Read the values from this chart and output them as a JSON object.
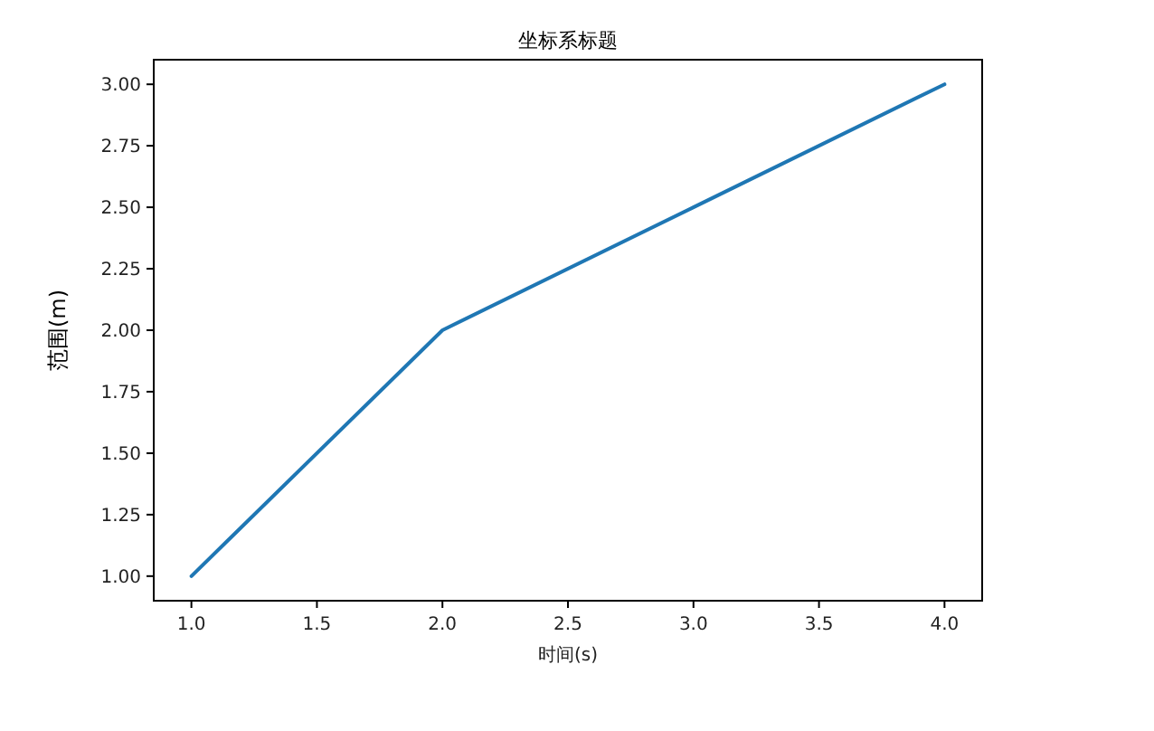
{
  "chart_data": {
    "type": "line",
    "title": "坐标系标题",
    "xlabel": "时间(s)",
    "ylabel": "范围(m)",
    "x": [
      1,
      2,
      3,
      4
    ],
    "series": [
      {
        "color": "#1f77b4",
        "values": [
          1,
          2,
          2.5,
          3
        ]
      }
    ],
    "xlim": [
      0.85,
      4.15
    ],
    "ylim": [
      0.9,
      3.1
    ],
    "xticks": [
      {
        "value": 1,
        "label": "1.0"
      },
      {
        "value": 1.5,
        "label": "1.5"
      },
      {
        "value": 2,
        "label": "2.0"
      },
      {
        "value": 2.5,
        "label": "2.5"
      },
      {
        "value": 3,
        "label": "3.0"
      },
      {
        "value": 3.5,
        "label": "3.5"
      },
      {
        "value": 4,
        "label": "4.0"
      }
    ],
    "yticks": [
      {
        "value": 1,
        "label": "1.00"
      },
      {
        "value": 1.25,
        "label": "1.25"
      },
      {
        "value": 1.5,
        "label": "1.50"
      },
      {
        "value": 1.75,
        "label": "1.75"
      },
      {
        "value": 2,
        "label": "2.00"
      },
      {
        "value": 2.25,
        "label": "2.25"
      },
      {
        "value": 2.5,
        "label": "2.50"
      },
      {
        "value": 2.75,
        "label": "2.75"
      },
      {
        "value": 3,
        "label": "3.00"
      }
    ]
  }
}
